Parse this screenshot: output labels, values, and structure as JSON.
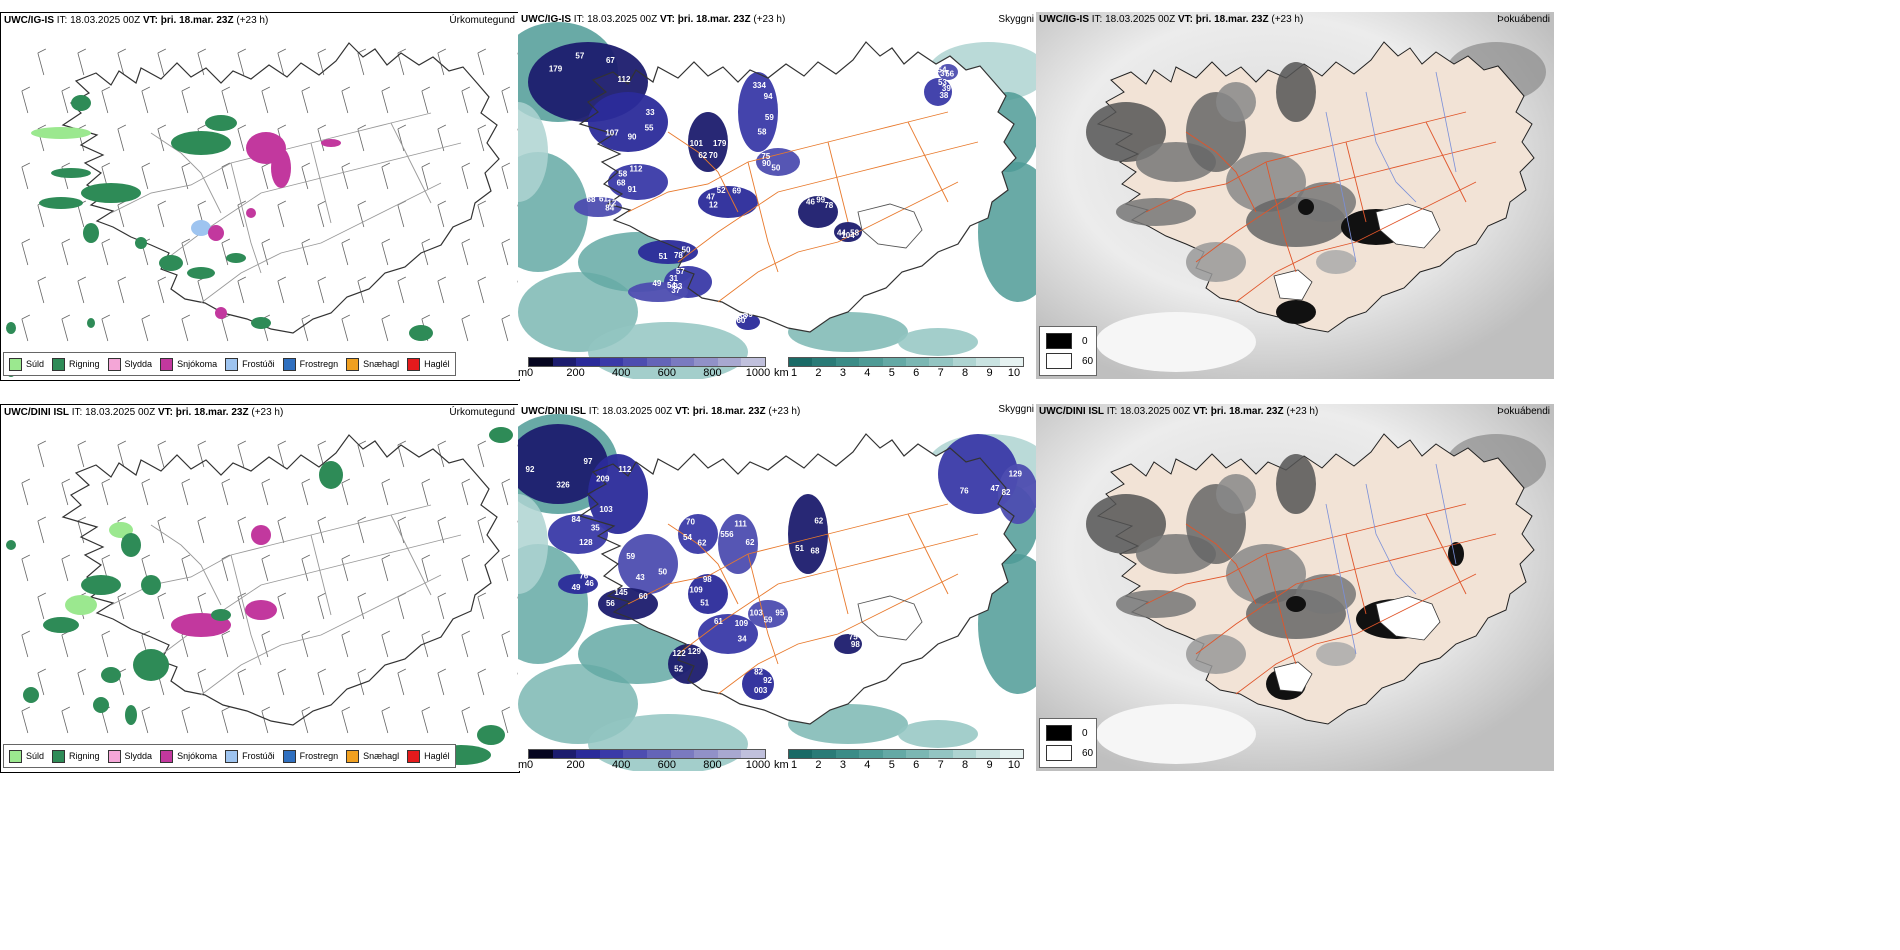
{
  "panels": [
    {
      "id": "p1",
      "model": "UWC/IG-IS",
      "it_label": "IT:",
      "it": "18.03.2025 00Z",
      "vt_label": "VT:",
      "vt": "þri. 18.mar. 23Z",
      "lead": "(+23 h)",
      "name": "Úrkomutegund",
      "kind": "precip"
    },
    {
      "id": "p2",
      "model": "UWC/IG-IS",
      "it_label": "IT:",
      "it": "18.03.2025 00Z",
      "vt_label": "VT:",
      "vt": "þri. 18.mar. 23Z",
      "lead": "(+23 h)",
      "name": "Skyggni",
      "kind": "cloud"
    },
    {
      "id": "p3",
      "model": "UWC/IG-IS",
      "it_label": "IT:",
      "it": "18.03.2025 00Z",
      "vt_label": "VT:",
      "vt": "þri. 18.mar. 23Z",
      "lead": "(+23 h)",
      "name": "Þokuábendi",
      "kind": "fog"
    },
    {
      "id": "p4",
      "model": "UWC/DINI ISL",
      "it_label": "IT:",
      "it": "18.03.2025 00Z",
      "vt_label": "VT:",
      "vt": "þri. 18.mar. 23Z",
      "lead": "(+23 h)",
      "name": "Úrkomutegund",
      "kind": "precip"
    },
    {
      "id": "p5",
      "model": "UWC/DINI ISL",
      "it_label": "IT:",
      "it": "18.03.2025 00Z",
      "vt_label": "VT:",
      "vt": "þri. 18.mar. 23Z",
      "lead": "(+23 h)",
      "name": "Skyggni",
      "kind": "cloud"
    },
    {
      "id": "p6",
      "model": "UWC/DINI ISL",
      "it_label": "IT:",
      "it": "18.03.2025 00Z",
      "vt_label": "VT:",
      "vt": "þri. 18.mar. 23Z",
      "lead": "(+23 h)",
      "name": "Þokuábendi",
      "kind": "fog"
    }
  ],
  "precip_legend": [
    {
      "label": "Súld",
      "color": "#9be88f"
    },
    {
      "label": "Rigning",
      "color": "#2e8b57"
    },
    {
      "label": "Slydda",
      "color": "#f4a6d7"
    },
    {
      "label": "Snjókoma",
      "color": "#c2389e"
    },
    {
      "label": "Frostúði",
      "color": "#9ec4f0"
    },
    {
      "label": "Frostregn",
      "color": "#2f6fbf"
    },
    {
      "label": "Snæhagl",
      "color": "#f0a020"
    },
    {
      "label": "Haglél",
      "color": "#e41a1c"
    }
  ],
  "ceiling_scale": {
    "unit": "m",
    "ticks": [
      "0",
      "200",
      "400",
      "600",
      "800",
      "1000"
    ],
    "colors": [
      "#05051f",
      "#1c1c6e",
      "#2b2b9a",
      "#3a3aa8",
      "#4d4db0",
      "#6464b8",
      "#7a7ac0",
      "#9191c8",
      "#a8a8d0",
      "#c0c0dc"
    ]
  },
  "visibility_scale": {
    "unit": "km",
    "ticks": [
      "1",
      "2",
      "3",
      "4",
      "5",
      "6",
      "7",
      "8",
      "9",
      "10"
    ],
    "colors": [
      "#1a6a66",
      "#2a7b77",
      "#3b8c87",
      "#4f9b96",
      "#64a9a5",
      "#7bb7b3",
      "#93c5c2",
      "#aed4d1",
      "#c9e3e1",
      "#e6f2f1"
    ]
  },
  "fog_legend": [
    {
      "label": "0",
      "color": "#000000"
    },
    {
      "label": "60",
      "color": "#ffffff"
    }
  ],
  "ceiling_labels_top": [
    "112",
    "107",
    "112",
    "84",
    "101",
    "69",
    "58",
    "75",
    "78",
    "51",
    "57",
    "37",
    "44",
    "39",
    "38",
    "54",
    "67",
    "90",
    "58",
    "12",
    "62",
    "52",
    "59",
    "90",
    "99",
    "78",
    "31",
    "54",
    "104",
    "38",
    "39",
    "37",
    "57",
    "55",
    "68",
    "61",
    "70",
    "47",
    "94",
    "50",
    "46",
    "50",
    "93",
    "49",
    "58",
    "60",
    "53",
    "56",
    "179",
    "33",
    "91",
    "68",
    "179",
    "12",
    "334"
  ],
  "ceiling_labels_bottom": [
    "97",
    "103",
    "84",
    "50",
    "56",
    "76",
    "62",
    "556",
    "62",
    "51",
    "61",
    "95",
    "52",
    "82",
    "47",
    "82",
    "75",
    "326",
    "209",
    "35",
    "43",
    "145",
    "46",
    "54",
    "111",
    "68",
    "109",
    "109",
    "59",
    "122",
    "92",
    "76",
    "129",
    "98",
    "92",
    "112",
    "128",
    "59",
    "60",
    "49",
    "70",
    "62",
    "51",
    "98",
    "34",
    "103",
    "129",
    "003"
  ]
}
